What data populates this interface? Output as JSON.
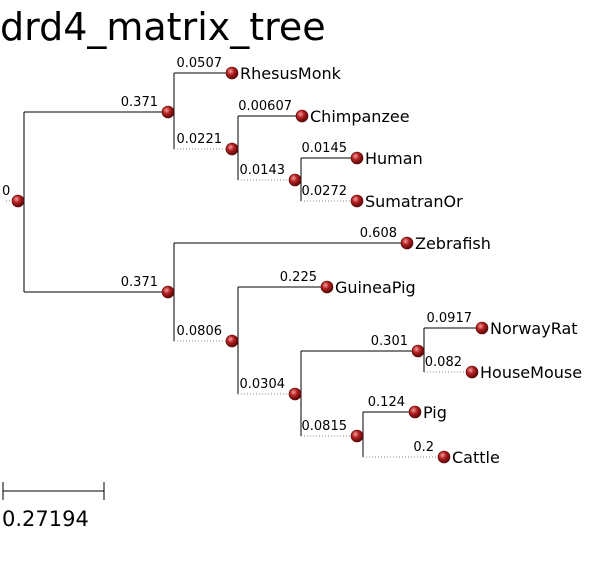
{
  "title": "drd4_matrix_tree",
  "scale_bar_label": "0.27194",
  "node_color": "#a01818",
  "tree": {
    "name": "",
    "length": "0",
    "children": [
      {
        "name": "",
        "length": "0.371",
        "children": [
          {
            "name": "RhesusMonk",
            "length": "0.0507"
          },
          {
            "name": "",
            "length": "0.0221",
            "children": [
              {
                "name": "Chimpanzee",
                "length": "0.00607"
              },
              {
                "name": "",
                "length": "0.0143",
                "children": [
                  {
                    "name": "Human",
                    "length": "0.0145"
                  },
                  {
                    "name": "SumatranOr",
                    "length": "0.0272"
                  }
                ]
              }
            ]
          }
        ]
      },
      {
        "name": "",
        "length": "0.371",
        "children": [
          {
            "name": "Zebrafish",
            "length": "0.608"
          },
          {
            "name": "",
            "length": "0.0806",
            "children": [
              {
                "name": "GuineaPig",
                "length": "0.225"
              },
              {
                "name": "",
                "length": "0.0304",
                "children": [
                  {
                    "name": "",
                    "length": "0.301",
                    "children": [
                      {
                        "name": "NorwayRat",
                        "length": "0.0917"
                      },
                      {
                        "name": "HouseMouse",
                        "length": "0.082"
                      }
                    ]
                  },
                  {
                    "name": "",
                    "length": "0.0815",
                    "children": [
                      {
                        "name": "Pig",
                        "length": "0.124"
                      },
                      {
                        "name": "Cattle",
                        "length": "0.2"
                      }
                    ]
                  }
                ]
              }
            ]
          }
        ]
      }
    ]
  }
}
